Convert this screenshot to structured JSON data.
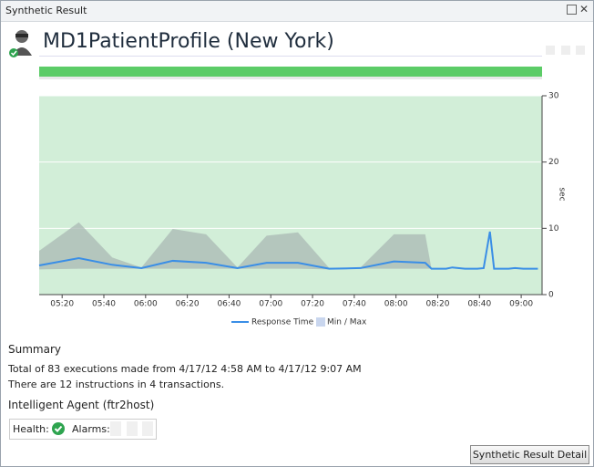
{
  "window_title": "Synthetic Result",
  "header": {
    "title": "MD1PatientProfile (New York)"
  },
  "chart_data": {
    "type": "line",
    "x": [
      "05:09",
      "05:28",
      "05:44",
      "05:58",
      "06:13",
      "06:29",
      "06:44",
      "06:58",
      "07:13",
      "07:28",
      "07:43",
      "07:59",
      "08:14",
      "08:17",
      "08:24",
      "08:27",
      "08:33",
      "08:39",
      "08:42",
      "08:45",
      "08:47",
      "08:54",
      "08:57",
      "09:01",
      "09:08"
    ],
    "series": [
      {
        "name": "Response Time",
        "color": "#3a8ee6",
        "values": [
          4.4,
          5.5,
          4.5,
          4.0,
          5.1,
          4.8,
          4.0,
          4.8,
          4.8,
          3.9,
          4.0,
          5.0,
          4.8,
          3.9,
          3.9,
          4.1,
          3.9,
          3.9,
          4.0,
          9.5,
          3.9,
          3.9,
          4.0,
          3.9,
          3.9
        ]
      }
    ],
    "band": {
      "name": "Min / Max",
      "color": "#a9b8b4",
      "max": [
        6.6,
        10.9,
        5.6,
        4.1,
        9.9,
        9.1,
        4.1,
        8.9,
        9.4,
        4.0,
        4.1,
        9.1,
        9.1,
        3.9,
        null,
        null,
        null,
        null,
        null,
        null,
        null,
        null,
        null,
        null,
        null
      ],
      "min": [
        3.8,
        3.9,
        3.9,
        3.9,
        3.9,
        3.9,
        3.9,
        3.9,
        3.9,
        3.8,
        3.9,
        3.9,
        3.9,
        3.9,
        null,
        null,
        null,
        null,
        null,
        null,
        null,
        null,
        null,
        null,
        null
      ]
    },
    "xlim": [
      "05:09",
      "09:10"
    ],
    "xticks": [
      "05:20",
      "05:40",
      "06:00",
      "06:20",
      "06:40",
      "07:00",
      "07:20",
      "07:40",
      "08:00",
      "08:20",
      "08:40",
      "09:00"
    ],
    "ylim": [
      0,
      30
    ],
    "yticks": [
      0,
      10,
      20,
      30
    ],
    "y_label": "sec",
    "grid": true
  },
  "summary": {
    "title": "Summary",
    "lines": [
      "Total of 83 executions made from 4/17/12 4:58 AM to 4/17/12 9:07 AM",
      "There are 12 instructions in 4 transactions."
    ]
  },
  "agent": {
    "title": "Intelligent Agent (ftr2host)",
    "health_label": "Health:",
    "alarms_label": "Alarms:"
  },
  "button": "Synthetic Result Detail"
}
